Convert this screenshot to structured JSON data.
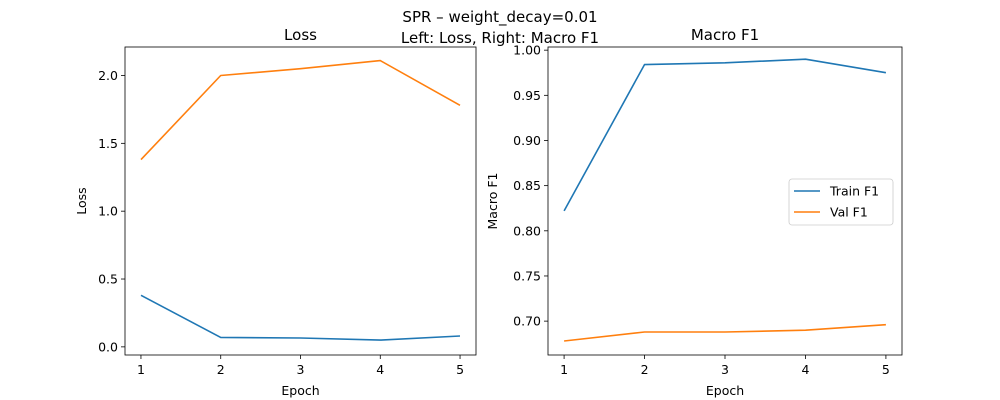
{
  "figure": {
    "suptitle_line1": "SPR – weight_decay=0.01",
    "suptitle_line2": "Left: Loss, Right: Macro F1"
  },
  "chart_data": [
    {
      "type": "line",
      "title": "Loss",
      "xlabel": "Epoch",
      "ylabel": "Loss",
      "x": [
        1,
        2,
        3,
        4,
        5
      ],
      "xticks": [
        "1",
        "2",
        "3",
        "4",
        "5"
      ],
      "xlim": [
        0.8,
        5.2
      ],
      "ylim": [
        -0.06,
        2.21
      ],
      "yticks": [
        0.0,
        0.5,
        1.0,
        1.5,
        2.0
      ],
      "ytick_labels": [
        "0.0",
        "0.5",
        "1.0",
        "1.5",
        "2.0"
      ],
      "legend": false,
      "series": [
        {
          "color": "#1f77b4",
          "values": [
            0.38,
            0.07,
            0.065,
            0.05,
            0.08
          ]
        },
        {
          "color": "#ff7f0e",
          "values": [
            1.38,
            2.0,
            2.05,
            2.11,
            1.78
          ]
        }
      ]
    },
    {
      "type": "line",
      "title": "Macro F1",
      "xlabel": "Epoch",
      "ylabel": "Macro F1",
      "x": [
        1,
        2,
        3,
        4,
        5
      ],
      "xticks": [
        "1",
        "2",
        "3",
        "4",
        "5"
      ],
      "xlim": [
        0.8,
        5.2
      ],
      "ylim": [
        0.6625,
        1.0035
      ],
      "yticks": [
        0.7,
        0.75,
        0.8,
        0.85,
        0.9,
        0.95,
        1.0
      ],
      "ytick_labels": [
        "0.70",
        "0.75",
        "0.80",
        "0.85",
        "0.90",
        "0.95",
        "1.00"
      ],
      "legend": true,
      "legend_position": "center-right",
      "series": [
        {
          "name": "Train F1",
          "color": "#1f77b4",
          "values": [
            0.822,
            0.984,
            0.986,
            0.99,
            0.975
          ]
        },
        {
          "name": "Val F1",
          "color": "#ff7f0e",
          "values": [
            0.678,
            0.688,
            0.688,
            0.69,
            0.696
          ]
        }
      ]
    }
  ]
}
